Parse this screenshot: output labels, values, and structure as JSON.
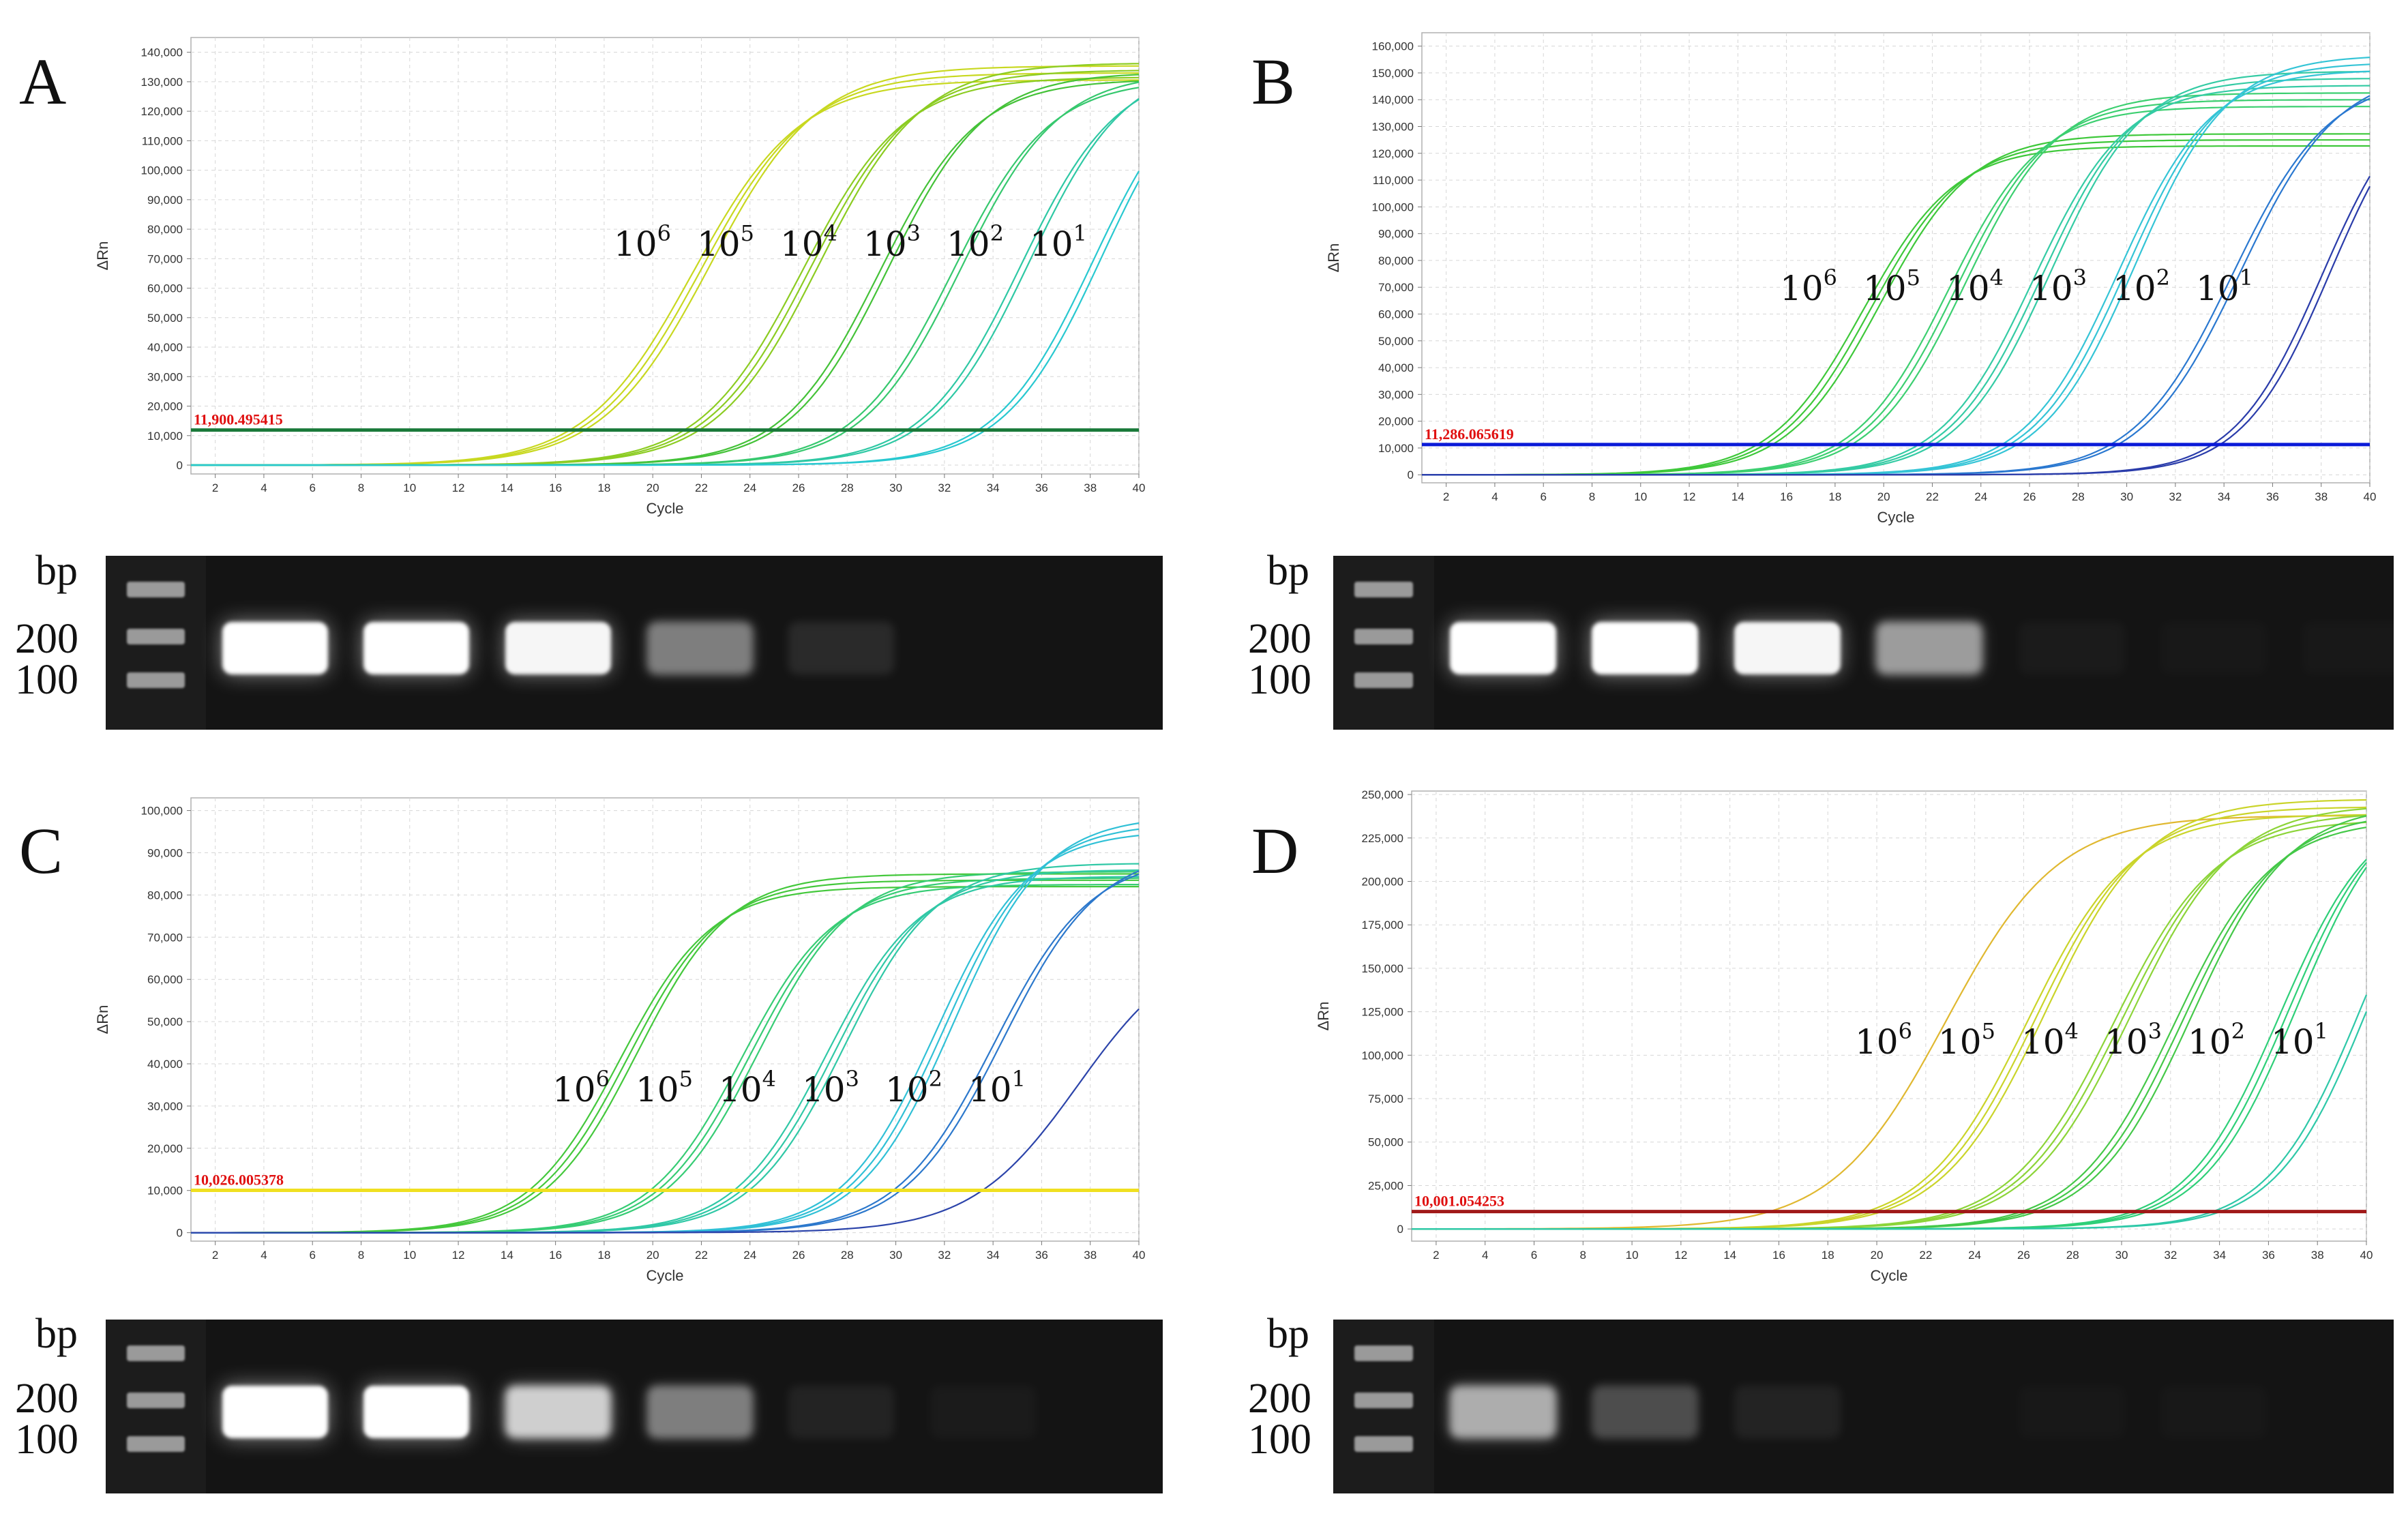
{
  "gel_text": {
    "bp": "bp",
    "band_200": "200",
    "band_100": "100"
  },
  "conc_labels": [
    {
      "base": "10",
      "exp": "6"
    },
    {
      "base": "10",
      "exp": "5"
    },
    {
      "base": "10",
      "exp": "4"
    },
    {
      "base": "10",
      "exp": "3"
    },
    {
      "base": "10",
      "exp": "2"
    },
    {
      "base": "10",
      "exp": "1"
    }
  ],
  "chart_data": [
    {
      "panel": "A",
      "type": "line",
      "xlabel": "Cycle",
      "ylabel": "ΔRn",
      "xlim": [
        1,
        40
      ],
      "ylim": [
        -3000,
        145000
      ],
      "xticks": [
        2,
        4,
        6,
        8,
        10,
        12,
        14,
        16,
        18,
        20,
        22,
        24,
        26,
        28,
        30,
        32,
        34,
        36,
        38,
        40
      ],
      "yticks": [
        0,
        10000,
        20000,
        30000,
        40000,
        50000,
        60000,
        70000,
        80000,
        90000,
        100000,
        110000,
        120000,
        130000,
        140000
      ],
      "ytick_labels": [
        "0",
        "10,000",
        "20,000",
        "30,000",
        "40,000",
        "50,000",
        "60,000",
        "70,000",
        "80,000",
        "90,000",
        "100,000",
        "110,000",
        "120,000",
        "130,000",
        "140,000"
      ],
      "grid": true,
      "threshold": {
        "value": 11900.495415,
        "label": "11,900.495415",
        "color": "#1a7a3a"
      },
      "series": [
        {
          "color": "#c8d820",
          "midpoint": 22.0,
          "plateau": 133000,
          "slope": 2.2,
          "replicates": 3
        },
        {
          "color": "#8ccc22",
          "midpoint": 26.5,
          "plateau": 134000,
          "slope": 2.1,
          "replicates": 3
        },
        {
          "color": "#44c238",
          "midpoint": 29.5,
          "plateau": 132000,
          "slope": 2.0,
          "replicates": 2
        },
        {
          "color": "#36c86e",
          "midpoint": 32.5,
          "plateau": 132000,
          "slope": 2.0,
          "replicates": 2
        },
        {
          "color": "#2ec8a4",
          "midpoint": 35.3,
          "plateau": 136000,
          "slope": 2.0,
          "replicates": 2
        },
        {
          "color": "#28c8d0",
          "midpoint": 38.3,
          "plateau": 140000,
          "slope": 2.0,
          "replicates": 2
        }
      ]
    },
    {
      "panel": "B",
      "type": "line",
      "xlabel": "Cycle",
      "ylabel": "ΔRn",
      "xlim": [
        1,
        40
      ],
      "ylim": [
        -3000,
        165000
      ],
      "xticks": [
        2,
        4,
        6,
        8,
        10,
        12,
        14,
        16,
        18,
        20,
        22,
        24,
        26,
        28,
        30,
        32,
        34,
        36,
        38,
        40
      ],
      "yticks": [
        0,
        10000,
        20000,
        30000,
        40000,
        50000,
        60000,
        70000,
        80000,
        90000,
        100000,
        110000,
        120000,
        130000,
        140000,
        150000,
        160000
      ],
      "ytick_labels": [
        "0",
        "10,000",
        "20,000",
        "30,000",
        "40,000",
        "50,000",
        "60,000",
        "70,000",
        "80,000",
        "90,000",
        "100,000",
        "110,000",
        "120,000",
        "130,000",
        "140,000",
        "150,000",
        "160,000"
      ],
      "grid": true,
      "threshold": {
        "value": 11286.065619,
        "label": "11,286.065619",
        "color": "#0a1ad8"
      },
      "series": [
        {
          "color": "#3ec83a",
          "midpoint": 19.5,
          "plateau": 125000,
          "slope": 1.9,
          "replicates": 3
        },
        {
          "color": "#3ccf70",
          "midpoint": 23.0,
          "plateau": 140000,
          "slope": 1.9,
          "replicates": 3
        },
        {
          "color": "#34cba4",
          "midpoint": 26.5,
          "plateau": 148000,
          "slope": 1.9,
          "replicates": 3
        },
        {
          "color": "#34c4d6",
          "midpoint": 30.0,
          "plateau": 154000,
          "slope": 1.9,
          "replicates": 3
        },
        {
          "color": "#2a78d0",
          "midpoint": 34.5,
          "plateau": 150000,
          "slope": 2.0,
          "replicates": 2
        },
        {
          "color": "#2a3caa",
          "midpoint": 38.2,
          "plateau": 150000,
          "slope": 1.8,
          "replicates": 2
        }
      ]
    },
    {
      "panel": "C",
      "type": "line",
      "xlabel": "Cycle",
      "ylabel": "ΔRn",
      "xlim": [
        1,
        40
      ],
      "ylim": [
        -2000,
        103000
      ],
      "xticks": [
        2,
        4,
        6,
        8,
        10,
        12,
        14,
        16,
        18,
        20,
        22,
        24,
        26,
        28,
        30,
        32,
        34,
        36,
        38,
        40
      ],
      "yticks": [
        0,
        10000,
        20000,
        30000,
        40000,
        50000,
        60000,
        70000,
        80000,
        90000,
        100000
      ],
      "ytick_labels": [
        "0",
        "10,000",
        "20,000",
        "30,000",
        "40,000",
        "50,000",
        "60,000",
        "70,000",
        "80,000",
        "90,000",
        "100,000"
      ],
      "grid": true,
      "threshold": {
        "value": 10026.005378,
        "label": "10,026.005378",
        "color": "#f0e020"
      },
      "series": [
        {
          "color": "#44c83c",
          "midpoint": 19.0,
          "plateau": 83500,
          "slope": 1.9,
          "replicates": 3
        },
        {
          "color": "#36cc74",
          "midpoint": 24.0,
          "plateau": 84000,
          "slope": 1.9,
          "replicates": 3
        },
        {
          "color": "#30c8a6",
          "midpoint": 27.5,
          "plateau": 86000,
          "slope": 1.9,
          "replicates": 3
        },
        {
          "color": "#30c0d6",
          "midpoint": 32.0,
          "plateau": 97000,
          "slope": 1.9,
          "replicates": 3
        },
        {
          "color": "#2c78cc",
          "midpoint": 34.2,
          "plateau": 90000,
          "slope": 2.0,
          "replicates": 2
        },
        {
          "color": "#2c44aa",
          "midpoint": 37.5,
          "plateau": 70000,
          "slope": 2.2,
          "replicates": 1
        }
      ]
    },
    {
      "panel": "D",
      "type": "line",
      "xlabel": "Cycle",
      "ylabel": "ΔRn",
      "xlim": [
        1,
        40
      ],
      "ylim": [
        -7000,
        252000
      ],
      "xticks": [
        2,
        4,
        6,
        8,
        10,
        12,
        14,
        16,
        18,
        20,
        22,
        24,
        26,
        28,
        30,
        32,
        34,
        36,
        38,
        40
      ],
      "yticks": [
        0,
        25000,
        50000,
        75000,
        100000,
        125000,
        150000,
        175000,
        200000,
        225000,
        250000
      ],
      "ytick_labels": [
        "0",
        "25,000",
        "50,000",
        "75,000",
        "100,000",
        "125,000",
        "150,000",
        "175,000",
        "200,000",
        "225,000",
        "250,000"
      ],
      "grid": true,
      "threshold": {
        "value": 10001.054253,
        "label": "10,001.054253",
        "color": "#a01818"
      },
      "series": [
        {
          "color": "#e0b830",
          "midpoint": 22.8,
          "plateau": 238000,
          "slope": 2.3,
          "replicates": 1
        },
        {
          "color": "#cad42a",
          "midpoint": 26.5,
          "plateau": 243000,
          "slope": 2.1,
          "replicates": 3
        },
        {
          "color": "#8cd438",
          "midpoint": 30.0,
          "plateau": 240000,
          "slope": 2.1,
          "replicates": 3
        },
        {
          "color": "#44c848",
          "midpoint": 32.5,
          "plateau": 240000,
          "slope": 2.0,
          "replicates": 3
        },
        {
          "color": "#2ecf78",
          "midpoint": 36.8,
          "plateau": 250000,
          "slope": 1.9,
          "replicates": 3
        },
        {
          "color": "#2ec8a8",
          "midpoint": 40.0,
          "plateau": 260000,
          "slope": 1.9,
          "replicates": 2
        }
      ]
    }
  ],
  "gels": [
    {
      "panel": "A",
      "bands": [
        1.0,
        1.0,
        0.95,
        0.6,
        0.2,
        0,
        0
      ]
    },
    {
      "panel": "B",
      "bands": [
        1.0,
        1.0,
        0.95,
        0.7,
        0.08,
        0.05,
        0.05
      ]
    },
    {
      "panel": "C",
      "bands": [
        1.0,
        1.0,
        0.85,
        0.6,
        0.15,
        0.08,
        0
      ]
    },
    {
      "panel": "D",
      "bands": [
        0.75,
        0.4,
        0.15,
        0,
        0.05,
        0.05,
        0
      ]
    }
  ]
}
